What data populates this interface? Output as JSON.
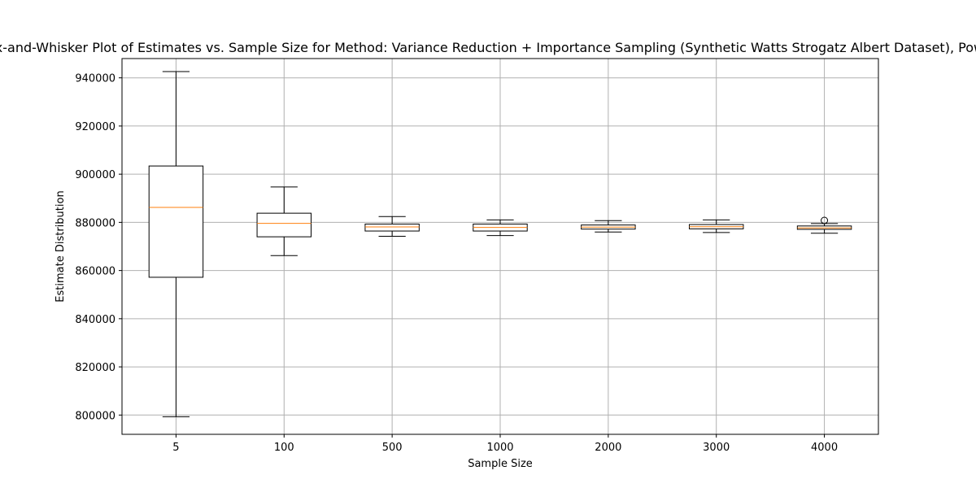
{
  "chart_data": {
    "type": "box",
    "title": "Box-and-Whisker Plot of Estimates vs. Sample Size for Method: Variance Reduction + Importance Sampling (Synthetic Watts Strogatz Albert Dataset), Power",
    "xlabel": "Sample Size",
    "ylabel": "Estimate Distribution",
    "ylim": [
      792000,
      948000
    ],
    "yticks": [
      "800000",
      "820000",
      "840000",
      "860000",
      "880000",
      "900000",
      "920000",
      "940000"
    ],
    "grid": true,
    "colors": {
      "box": "#000000",
      "median": "#ff7f0e",
      "grid": "#b0b0b0"
    },
    "boxes": [
      {
        "category": "5",
        "whisker_low": 799300,
        "q1": 857200,
        "median": 886200,
        "q3": 903400,
        "whisker_high": 942600,
        "outliers": []
      },
      {
        "category": "100",
        "whisker_low": 866200,
        "q1": 874000,
        "median": 879600,
        "q3": 883800,
        "whisker_high": 894700,
        "outliers": []
      },
      {
        "category": "500",
        "whisker_low": 874200,
        "q1": 876400,
        "median": 878100,
        "q3": 879300,
        "whisker_high": 882400,
        "outliers": []
      },
      {
        "category": "1000",
        "whisker_low": 874500,
        "q1": 876400,
        "median": 877900,
        "q3": 879300,
        "whisker_high": 881000,
        "outliers": []
      },
      {
        "category": "2000",
        "whisker_low": 876000,
        "q1": 877200,
        "median": 878000,
        "q3": 878900,
        "whisker_high": 880700,
        "outliers": []
      },
      {
        "category": "3000",
        "whisker_low": 875800,
        "q1": 877300,
        "median": 878200,
        "q3": 879100,
        "whisker_high": 881000,
        "outliers": []
      },
      {
        "category": "4000",
        "whisker_low": 875500,
        "q1": 877100,
        "median": 877700,
        "q3": 878500,
        "whisker_high": 879500,
        "outliers": [
          880800
        ]
      }
    ]
  }
}
